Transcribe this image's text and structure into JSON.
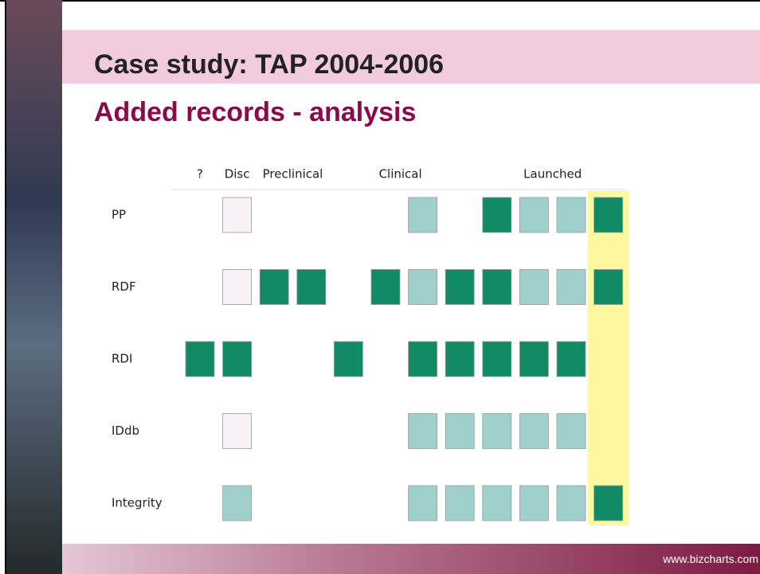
{
  "header": {
    "title": "Case study: TAP 2004-2006",
    "subtitle": "Added records - analysis"
  },
  "table": {
    "column_headers": [
      {
        "label": "?",
        "column": 0
      },
      {
        "label": "Disc",
        "column": 1
      },
      {
        "label": "Preclinical",
        "column": 2.5
      },
      {
        "label": "Clinical",
        "column": 5.4
      },
      {
        "label": "Launched",
        "column": 9.5
      }
    ],
    "highlight_column": 11,
    "highlight_color": "#fdf7a0",
    "rows": [
      {
        "label": "PP",
        "cells": [
          null,
          "#f6f2f6",
          null,
          null,
          null,
          null,
          "#9fd0cc",
          null,
          "#138a66",
          "#9fd0cc",
          "#9fd0cc",
          "#138a66"
        ]
      },
      {
        "label": "RDF",
        "cells": [
          null,
          "#f6f2f6",
          "#138a66",
          "#138a66",
          null,
          "#138a66",
          "#9fd0cc",
          "#138a66",
          "#138a66",
          "#9fd0cc",
          "#9fd0cc",
          "#138a66"
        ]
      },
      {
        "label": "RDI",
        "cells": [
          "#138a66",
          "#138a66",
          null,
          null,
          "#138a66",
          null,
          "#138a66",
          "#138a66",
          "#138a66",
          "#138a66",
          "#138a66",
          null
        ]
      },
      {
        "label": "IDdb",
        "cells": [
          null,
          "#f6f2f6",
          null,
          null,
          null,
          null,
          "#9fd0cc",
          "#9fd0cc",
          "#9fd0cc",
          "#9fd0cc",
          "#9fd0cc",
          null
        ]
      },
      {
        "label": "Integrity",
        "cells": [
          null,
          "#9fd0cc",
          null,
          null,
          null,
          null,
          "#9fd0cc",
          "#9fd0cc",
          "#9fd0cc",
          "#9fd0cc",
          "#9fd0cc",
          "#138a66"
        ]
      }
    ]
  },
  "footer": {
    "url": "www.bizcharts.com"
  }
}
